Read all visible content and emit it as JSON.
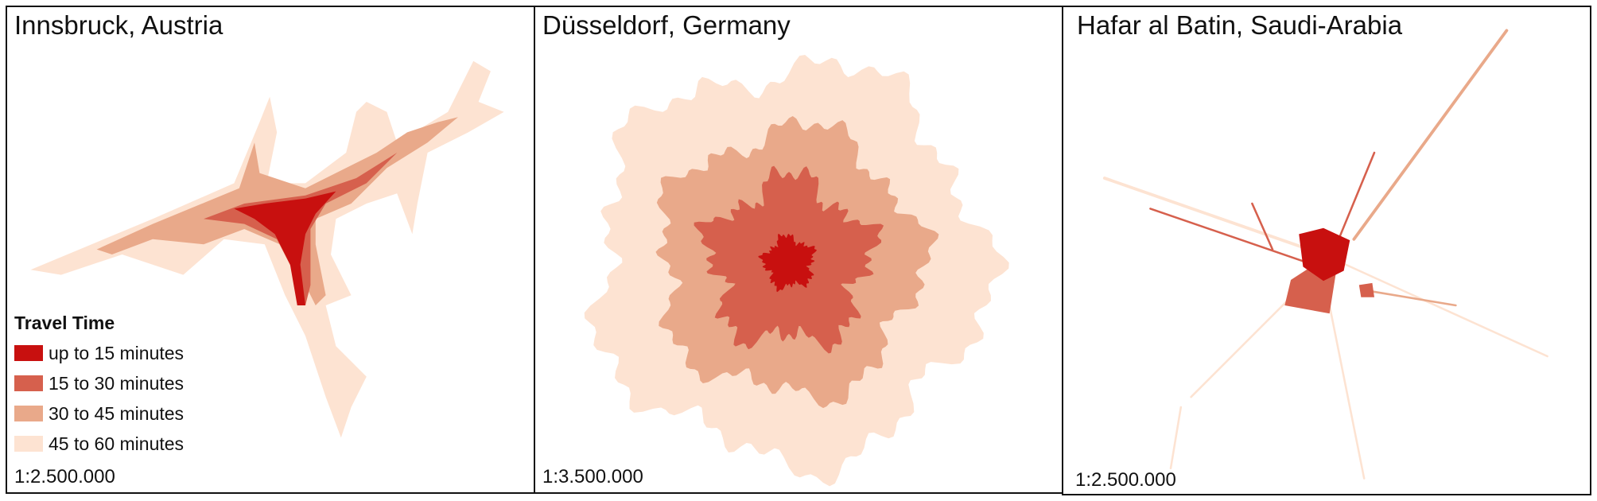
{
  "panels": [
    {
      "title": "Innsbruck, Austria",
      "scale": "1:2.500.000"
    },
    {
      "title": "Düsseldorf, Germany",
      "scale": "1:3.500.000"
    },
    {
      "title": "Hafar al Batin, Saudi-Arabia",
      "scale": "1:2.500.000"
    }
  ],
  "legend": {
    "title": "Travel Time",
    "items": [
      {
        "label": "up to 15 minutes",
        "color": "#c8100f"
      },
      {
        "label": "15 to 30 minutes",
        "color": "#d6604d"
      },
      {
        "label": "30 to 45 minutes",
        "color": "#e9a98a"
      },
      {
        "label": "45 to 60 minutes",
        "color": "#fde3d2"
      }
    ]
  }
}
